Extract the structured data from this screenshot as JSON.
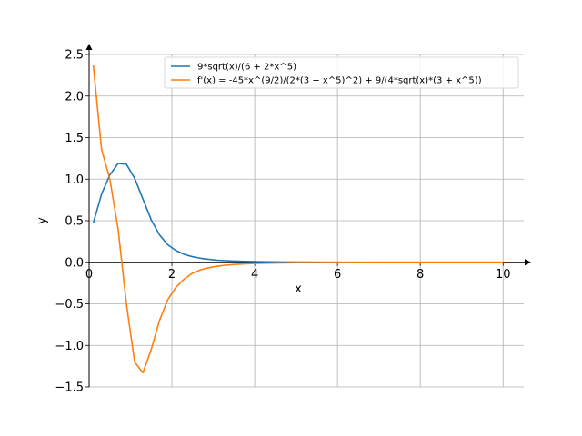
{
  "chart_data": {
    "type": "line",
    "xlabel": "x",
    "ylabel": "y",
    "xlim": [
      0,
      10.5
    ],
    "ylim": [
      -1.5,
      2.5
    ],
    "grid": true,
    "legend_position": "top-right",
    "x_ticks": [
      0,
      2,
      4,
      6,
      8,
      10
    ],
    "y_ticks": [
      -1.5,
      -1.0,
      -0.5,
      0.0,
      0.5,
      1.0,
      1.5,
      2.0,
      2.5
    ],
    "x_tick_labels": [
      "0",
      "2",
      "4",
      "6",
      "8",
      "10"
    ],
    "y_tick_labels": [
      "−1.5",
      "−1.0",
      "−0.5",
      "0.0",
      "0.5",
      "1.0",
      "1.5",
      "2.0",
      "2.5"
    ],
    "series": [
      {
        "name": "9*sqrt(x)/(6 + 2*x^5)",
        "color": "#1f77b4",
        "x": [
          0.1,
          0.3,
          0.5,
          0.7,
          0.9,
          1.1,
          1.3,
          1.5,
          1.7,
          1.9,
          2.1,
          2.3,
          2.5,
          2.7,
          2.9,
          3.1,
          3.3,
          3.5,
          3.7,
          3.9,
          4.2,
          4.6,
          5.0,
          6.0,
          7.0,
          8.0,
          9.0,
          10.0
        ],
        "y": [
          0.47,
          0.82,
          1.05,
          1.19,
          1.18,
          1.01,
          0.76,
          0.51,
          0.33,
          0.21,
          0.14,
          0.095,
          0.066,
          0.047,
          0.034,
          0.025,
          0.019,
          0.015,
          0.012,
          0.009,
          0.006,
          0.004,
          0.003,
          0.001,
          0.0005,
          0.0003,
          0.0002,
          0.0001
        ]
      },
      {
        "name": "f'(x) = -45*x^(9/2)/(2*(3 + x^5)^2) + 9/(4*sqrt(x)*(3 + x^5))",
        "color": "#ff7f0e",
        "x": [
          0.1,
          0.3,
          0.5,
          0.7,
          0.9,
          1.1,
          1.3,
          1.5,
          1.7,
          1.9,
          2.1,
          2.3,
          2.5,
          2.7,
          2.9,
          3.1,
          3.3,
          3.5,
          3.7,
          3.9,
          4.2,
          4.6,
          5.0,
          6.0,
          7.0,
          8.0,
          9.0,
          10.0
        ],
        "y": [
          2.37,
          1.36,
          1.0,
          0.4,
          -0.5,
          -1.2,
          -1.33,
          -1.05,
          -0.7,
          -0.45,
          -0.3,
          -0.2,
          -0.13,
          -0.09,
          -0.065,
          -0.048,
          -0.036,
          -0.027,
          -0.021,
          -0.016,
          -0.011,
          -0.007,
          -0.005,
          -0.002,
          -0.001,
          -0.0005,
          -0.0003,
          -0.0002
        ]
      }
    ]
  }
}
